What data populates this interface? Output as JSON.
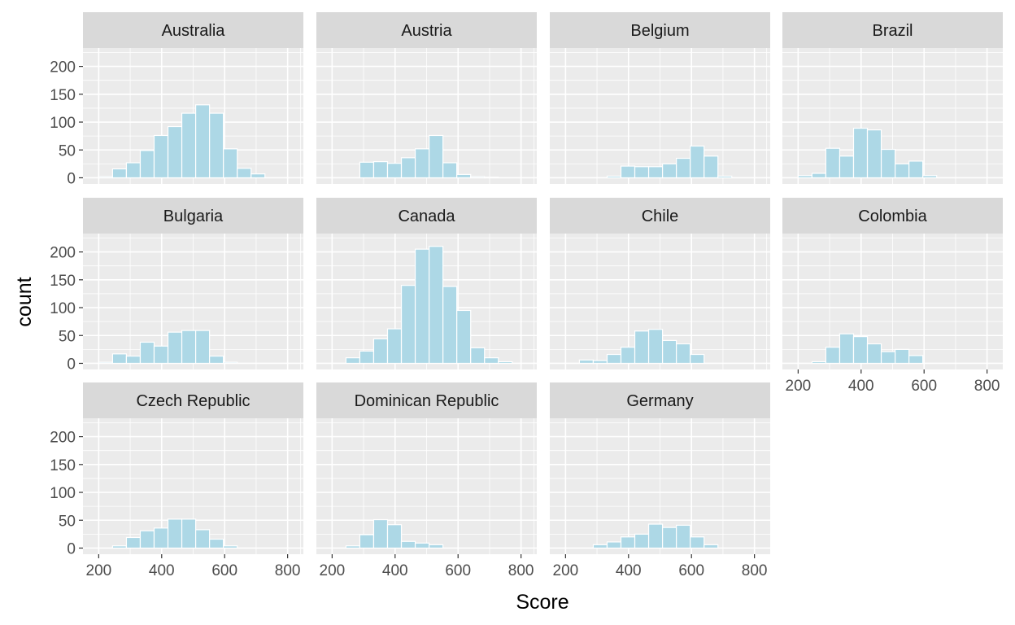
{
  "chart_data": {
    "type": "bar",
    "layout": "faceted histogram",
    "xlabel": "Score",
    "ylabel": "count",
    "xlim": [
      150,
      850
    ],
    "ylim": [
      -11,
      233
    ],
    "x_ticks": [
      200,
      400,
      600,
      800
    ],
    "y_ticks": [
      0,
      50,
      100,
      150,
      200
    ],
    "bin_width": 44,
    "bin_starts": [
      200,
      244,
      288,
      332,
      376,
      420,
      464,
      508,
      552,
      596,
      640,
      684,
      728,
      772,
      816
    ],
    "bar_fill": "#add8e6",
    "bar_outline": "#ffffff",
    "panel_background": "#ebebeb",
    "strip_background": "#d9d9d9",
    "grid": true,
    "panels": [
      {
        "label": "Australia",
        "values": [
          2,
          16,
          27,
          49,
          76,
          92,
          116,
          131,
          116,
          52,
          17,
          7,
          0,
          0,
          0
        ]
      },
      {
        "label": "Austria",
        "values": [
          0,
          0,
          28,
          29,
          26,
          36,
          52,
          76,
          27,
          6,
          2,
          1,
          0,
          0,
          0
        ]
      },
      {
        "label": "Belgium",
        "values": [
          0,
          0,
          0,
          3,
          21,
          20,
          20,
          25,
          35,
          57,
          39,
          3,
          0,
          0,
          0
        ]
      },
      {
        "label": "Brazil",
        "values": [
          4,
          8,
          53,
          39,
          89,
          86,
          51,
          25,
          30,
          4,
          0,
          0,
          0,
          0,
          0
        ]
      },
      {
        "label": "Bulgaria",
        "values": [
          2,
          17,
          13,
          38,
          31,
          56,
          59,
          59,
          13,
          2,
          0,
          0,
          0,
          0,
          0
        ]
      },
      {
        "label": "Canada",
        "values": [
          0,
          10,
          22,
          44,
          62,
          140,
          205,
          210,
          138,
          95,
          28,
          10,
          3,
          0,
          0
        ]
      },
      {
        "label": "Chile",
        "values": [
          0,
          6,
          5,
          16,
          29,
          58,
          61,
          41,
          35,
          16,
          0,
          0,
          0,
          0,
          0
        ]
      },
      {
        "label": "Colombia",
        "values": [
          0,
          3,
          29,
          53,
          48,
          35,
          21,
          25,
          14,
          0,
          0,
          0,
          0,
          0,
          0
        ]
      },
      {
        "label": "Czech Republic",
        "values": [
          0,
          4,
          19,
          31,
          36,
          52,
          52,
          33,
          16,
          4,
          0,
          0,
          0,
          0,
          0
        ]
      },
      {
        "label": "Dominican Republic",
        "values": [
          0,
          4,
          24,
          51,
          42,
          12,
          9,
          6,
          0,
          0,
          0,
          0,
          0,
          0,
          0
        ]
      },
      {
        "label": "Germany",
        "values": [
          0,
          0,
          6,
          11,
          20,
          25,
          43,
          37,
          41,
          20,
          6,
          0,
          0,
          0,
          0
        ]
      }
    ]
  }
}
